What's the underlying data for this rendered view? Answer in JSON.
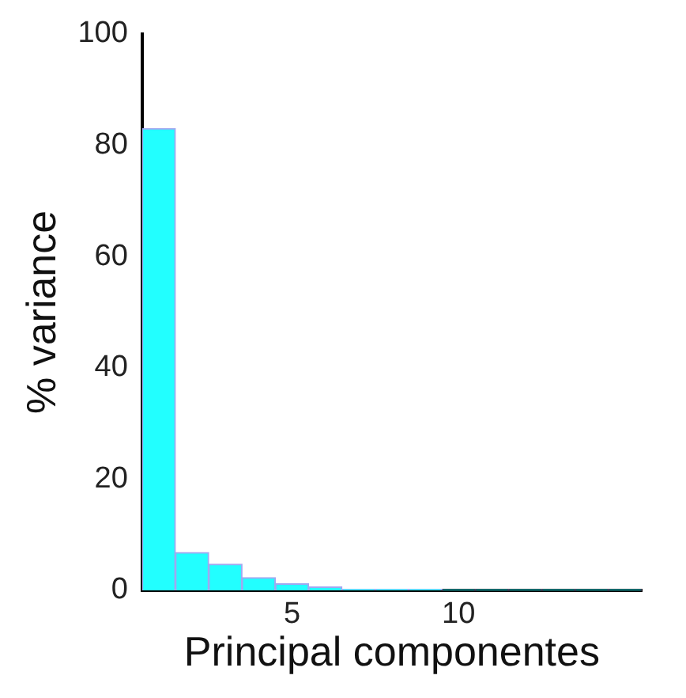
{
  "chart_data": {
    "type": "bar",
    "xlabel": "Principal componentes",
    "ylabel": "% variance",
    "categories": [
      null,
      null,
      null,
      null,
      "5",
      null,
      null,
      null,
      null,
      "10",
      null,
      null,
      null,
      null,
      null
    ],
    "values": [
      83,
      6.8,
      4.7,
      2.3,
      1.2,
      0.6,
      0.2,
      0.2,
      0.2,
      0.1,
      0.1,
      0.1,
      0.1,
      0.1,
      0.1
    ],
    "color": "#22ffff",
    "ylim": [
      0,
      100
    ],
    "yticks": [
      0,
      20,
      40,
      60,
      80,
      100
    ],
    "grid": false,
    "legend": false
  }
}
